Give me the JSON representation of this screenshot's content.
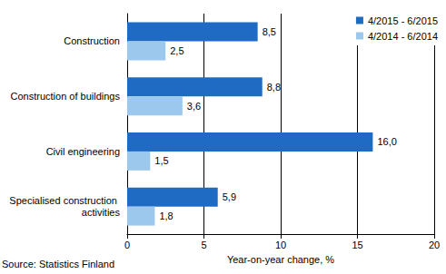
{
  "chart_data": {
    "type": "bar",
    "orientation": "horizontal",
    "categories": [
      "Construction",
      "Construction of buildings",
      "Civil engineering",
      "Specialised construction activities"
    ],
    "series": [
      {
        "name": "4/2015 - 6/2015",
        "color": "#1f6bc4",
        "values": [
          8.5,
          8.8,
          16.0,
          5.9
        ],
        "value_labels": [
          "8,5",
          "8,8",
          "16,0",
          "5,9"
        ]
      },
      {
        "name": "4/2014 - 6/2014",
        "color": "#9dc8ee",
        "values": [
          2.5,
          3.6,
          1.5,
          1.8
        ],
        "value_labels": [
          "2,5",
          "3,6",
          "1,5",
          "1,8"
        ]
      }
    ],
    "x_label": "Year-on-year change, %",
    "xlim": [
      0,
      20
    ],
    "xticks": [
      0,
      5,
      10,
      15,
      20
    ],
    "grid": true,
    "legend": "top-right",
    "data_labels": true,
    "source": "Source: Statistics Finland"
  }
}
